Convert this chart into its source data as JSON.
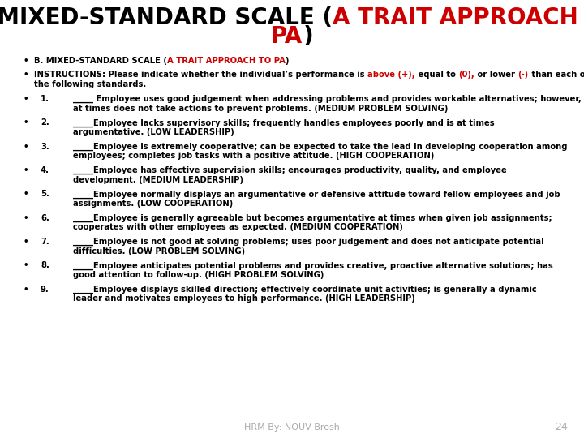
{
  "title_line1_black": "B. MIXED-STANDARD SCALE (",
  "title_line1_red": "A TRAIT APPROACH TO",
  "title_line2_red": "PA",
  "title_line2_black": ")",
  "bullet1_black": "B. MIXED-STANDARD SCALE (",
  "bullet1_red": "A TRAIT APPROACH TO PA",
  "bullet1_end": ")",
  "inst_prefix": "INSTRUCTIONS: Please indicate whether the individual’s performance is ",
  "inst_red1": "above (+),",
  "inst_mid1": " equal to ",
  "inst_red2": "(0),",
  "inst_mid2": " or lower ",
  "inst_red3": "(-)",
  "inst_suffix": " than each of the following standards.",
  "items": [
    {
      "num": "1.",
      "text": "_____ Employee uses good judgement when addressing problems and provides workable alternatives; however, at times does not take actions to prevent problems. (MEDIUM PROBLEM SOLVING)"
    },
    {
      "num": "2.",
      "text": "_____Employee lacks supervisory skills; frequently handles employees poorly and is at times argumentative. (LOW LEADERSHIP)"
    },
    {
      "num": "3.",
      "text": "_____Employee is extremely cooperative; can be expected to take the lead in developing cooperation among employees; completes job tasks with a positive attitude. (HIGH COOPERATION)"
    },
    {
      "num": "4.",
      "text": "_____Employee has effective supervision skills; encourages productivity, quality, and employee development. (MEDIUM LEADERSHIP)"
    },
    {
      "num": "5.",
      "text": "_____Employee normally displays an argumentative or defensive attitude toward fellow employees and job assignments. (LOW COOPERATION)"
    },
    {
      "num": "6.",
      "text": "_____Employee is generally agreeable but becomes argumentative at times when given job assignments; cooperates with other employees as expected. (MEDIUM COOPERATION)"
    },
    {
      "num": "7.",
      "text": "_____Employee is not good at solving problems; uses poor judgement and does not anticipate potential difficulties. (LOW PROBLEM SOLVING)"
    },
    {
      "num": "8.",
      "text": "_____Employee anticipates potential problems and provides creative, proactive alternative solutions; has good attention to follow-up. (HIGH PROBLEM SOLVING)"
    },
    {
      "num": "9.",
      "text": "_____Employee displays skilled direction; effectively coordinate unit activities; is generally a dynamic leader and motivates employees to high performance. (HIGH LEADERSHIP)"
    }
  ],
  "footer": "HRM By: NOUV Brosh",
  "page_num": "24",
  "bg_color": "#ffffff",
  "black": "#000000",
  "red": "#cc0000",
  "gray": "#aaaaaa",
  "title_fontsize": 20,
  "body_fontsize": 7.2,
  "footer_fontsize": 8
}
